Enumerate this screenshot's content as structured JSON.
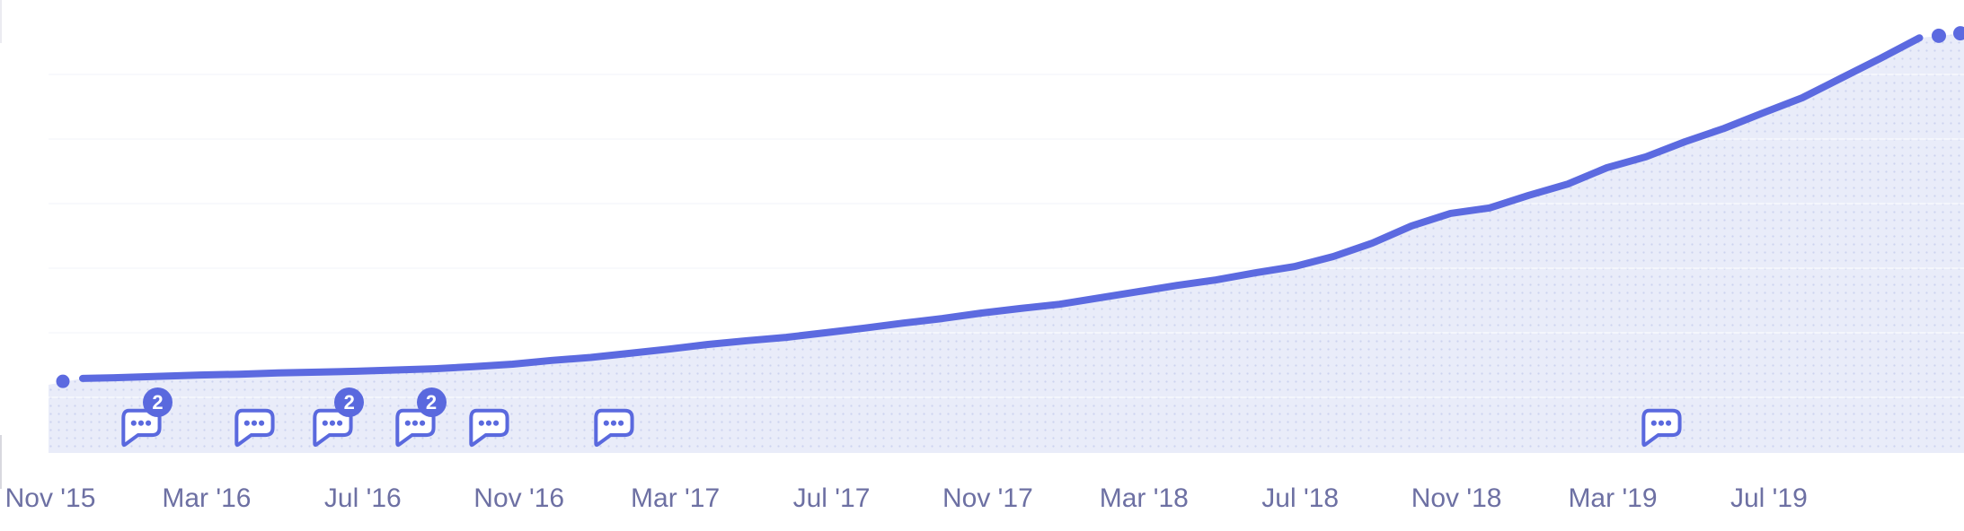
{
  "chart_data": {
    "type": "area",
    "title": "",
    "xlabel": "",
    "ylabel": "",
    "y_axis_labels_visible": false,
    "grid": "horizontal",
    "legend": "none",
    "ylim": [
      0,
      105
    ],
    "x_tick_labels": [
      "Nov '15",
      "Mar '16",
      "Jul '16",
      "Nov '16",
      "Mar '17",
      "Jul '17",
      "Nov '17",
      "Mar '18",
      "Jul '18",
      "Nov '18",
      "Mar '19",
      "Jul '19"
    ],
    "months": [
      "Dec '15",
      "Jan '16",
      "Feb '16",
      "Mar '16",
      "Apr '16",
      "May '16",
      "Jun '16",
      "Jul '16",
      "Aug '16",
      "Sep '16",
      "Oct '16",
      "Nov '16",
      "Dec '16",
      "Jan '17",
      "Feb '17",
      "Mar '17",
      "Apr '17",
      "May '17",
      "Jun '17",
      "Jul '17",
      "Aug '17",
      "Sep '17",
      "Oct '17",
      "Nov '17",
      "Dec '17",
      "Jan '18",
      "Feb '18",
      "Mar '18",
      "Apr '18",
      "May '18",
      "Jun '18",
      "Jul '18",
      "Aug '18",
      "Sep '18",
      "Oct '18",
      "Nov '18",
      "Dec '18",
      "Jan '19",
      "Feb '19",
      "Mar '19",
      "Apr '19",
      "May '19",
      "Jun '19",
      "Jul '19",
      "Aug '19",
      "Sep '19",
      "Oct '19",
      "Nov '19"
    ],
    "values_pct_of_max": [
      17.8,
      18.0,
      18.3,
      18.6,
      18.8,
      19.1,
      19.3,
      19.5,
      19.8,
      20.1,
      20.6,
      21.2,
      22.1,
      22.8,
      23.8,
      24.8,
      25.9,
      26.8,
      27.6,
      28.7,
      29.8,
      31.0,
      32.1,
      33.4,
      34.5,
      35.5,
      37.0,
      38.5,
      40.0,
      41.3,
      43.0,
      44.5,
      46.9,
      50.1,
      54.2,
      57.2,
      58.5,
      61.5,
      64.2,
      68.1,
      70.7,
      74.3,
      77.5,
      81.2,
      84.8,
      89.5,
      94.2,
      99.1
    ],
    "leading_dot": {
      "month": "Nov '15",
      "value_pct_of_max": 17.1
    },
    "trailing_dots": [
      {
        "value_pct_of_max": 99.6
      },
      {
        "value_pct_of_max": 100.2
      }
    ],
    "annotations": [
      {
        "date": "Jan '16",
        "month_offset_from_first_tick": 2.3,
        "comment_count": 2,
        "badge": "2"
      },
      {
        "date": "Apr '16",
        "month_offset_from_first_tick": 5.2,
        "comment_count": 1,
        "badge": ""
      },
      {
        "date": "Jun '16",
        "month_offset_from_first_tick": 7.2,
        "comment_count": 2,
        "badge": "2"
      },
      {
        "date": "Aug '16",
        "month_offset_from_first_tick": 9.3,
        "comment_count": 2,
        "badge": "2"
      },
      {
        "date": "Oct '16",
        "month_offset_from_first_tick": 11.2,
        "comment_count": 1,
        "badge": ""
      },
      {
        "date": "Jan '17",
        "month_offset_from_first_tick": 14.4,
        "comment_count": 1,
        "badge": ""
      },
      {
        "date": "Apr '19",
        "month_offset_from_first_tick": 41.2,
        "comment_count": 1,
        "badge": ""
      }
    ]
  },
  "colors": {
    "line": "#5c6ae0",
    "area_fill": "#e9ecf9",
    "area_dot_texture": "#ccd3ef",
    "gridline": "#f1f2f9",
    "gridline_over_fill": "rgba(255,255,255,0.5)",
    "axis_label": "#6d70a3",
    "icon": "#5a69de",
    "icon_fill": "#ffffff",
    "badge_bg": "#5a69de",
    "badge_text": "#ffffff",
    "edge_fragment_top": "#ebebf1",
    "edge_fragment_bottom": "#d8d8df"
  },
  "icons": {
    "comment_icon_glyph": "speech-bubble-with-ellipsis"
  }
}
